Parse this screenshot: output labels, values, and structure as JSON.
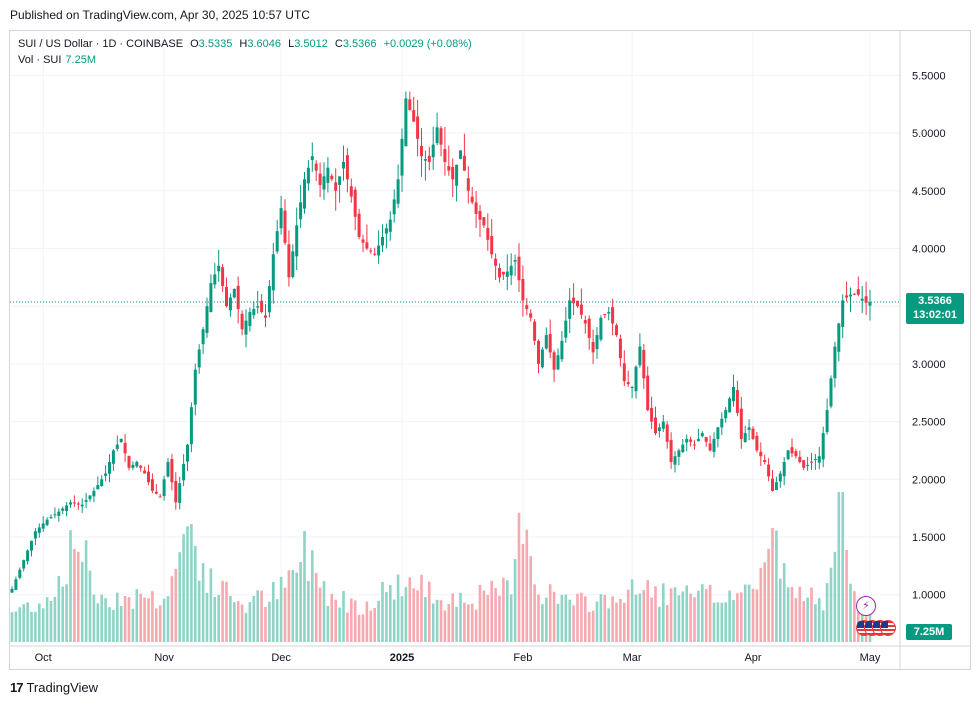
{
  "published": "Published on TradingView.com, Apr 30, 2025 10:57 UTC",
  "legend": {
    "symbol": "SUI / US Dollar · 1D · COINBASE",
    "o_label": "O",
    "o": "3.5335",
    "h_label": "H",
    "h": "3.6046",
    "l_label": "L",
    "l": "3.5012",
    "c_label": "C",
    "c": "3.5366",
    "change": "+0.0029 (+0.08%)",
    "vol_label": "Vol · SUI",
    "vol": "7.25M"
  },
  "price_tag": {
    "price": "3.5366",
    "countdown": "13:02:01"
  },
  "volume_tag": "7.25M",
  "footer": {
    "brand": "TradingView"
  },
  "colors": {
    "up": "#089981",
    "down": "#f23645",
    "up_vol": "#8fd4c6",
    "down_vol": "#f7a9b0",
    "grid": "#f0f3fa",
    "line": "#089981"
  },
  "icons": {
    "event": "lightning-icon",
    "flags": "us-flag-icon"
  },
  "chart_data": {
    "type": "candlestick",
    "title": "SUI / US Dollar · 1D · COINBASE",
    "ylim": [
      0.6,
      5.75
    ],
    "y_ticks": [
      "5.5000",
      "5.0000",
      "4.5000",
      "4.0000",
      "3.5000",
      "3.0000",
      "2.5000",
      "2.0000",
      "1.5000",
      "1.0000"
    ],
    "y_tick_values": [
      5.5,
      5.0,
      4.5,
      4.0,
      3.5,
      3.0,
      2.5,
      2.0,
      1.5,
      1.0
    ],
    "x_ticks": [
      {
        "label": "Oct",
        "day": 8,
        "bold": false
      },
      {
        "label": "Nov",
        "day": 39,
        "bold": false
      },
      {
        "label": "Dec",
        "day": 69,
        "bold": false
      },
      {
        "label": "2025",
        "day": 100,
        "bold": true
      },
      {
        "label": "Feb",
        "day": 131,
        "bold": false
      },
      {
        "label": "Mar",
        "day": 159,
        "bold": false
      },
      {
        "label": "Apr",
        "day": 190,
        "bold": false
      },
      {
        "label": "May",
        "day": 220,
        "bold": false
      }
    ],
    "days": 220,
    "close_anchors": [
      [
        0,
        1.05
      ],
      [
        3,
        1.3
      ],
      [
        6,
        1.55
      ],
      [
        9,
        1.65
      ],
      [
        12,
        1.72
      ],
      [
        15,
        1.8
      ],
      [
        18,
        1.78
      ],
      [
        21,
        1.9
      ],
      [
        24,
        2.05
      ],
      [
        26,
        2.25
      ],
      [
        28,
        2.35
      ],
      [
        30,
        2.1
      ],
      [
        32,
        2.15
      ],
      [
        34,
        2.05
      ],
      [
        36,
        1.9
      ],
      [
        38,
        1.85
      ],
      [
        40,
        2.15
      ],
      [
        42,
        1.8
      ],
      [
        45,
        2.3
      ],
      [
        47,
        2.95
      ],
      [
        49,
        3.3
      ],
      [
        51,
        3.7
      ],
      [
        53,
        3.85
      ],
      [
        55,
        3.5
      ],
      [
        57,
        3.65
      ],
      [
        59,
        3.3
      ],
      [
        61,
        3.45
      ],
      [
        63,
        3.5
      ],
      [
        65,
        3.4
      ],
      [
        67,
        3.95
      ],
      [
        69,
        4.35
      ],
      [
        71,
        3.75
      ],
      [
        73,
        4.2
      ],
      [
        75,
        4.6
      ],
      [
        77,
        4.8
      ],
      [
        79,
        4.55
      ],
      [
        81,
        4.7
      ],
      [
        83,
        4.5
      ],
      [
        85,
        4.75
      ],
      [
        87,
        4.45
      ],
      [
        89,
        4.1
      ],
      [
        91,
        4.0
      ],
      [
        93,
        3.95
      ],
      [
        95,
        4.1
      ],
      [
        97,
        4.25
      ],
      [
        99,
        4.6
      ],
      [
        101,
        5.3
      ],
      [
        103,
        5.1
      ],
      [
        105,
        4.8
      ],
      [
        107,
        4.75
      ],
      [
        109,
        5.05
      ],
      [
        111,
        4.75
      ],
      [
        113,
        4.6
      ],
      [
        115,
        4.85
      ],
      [
        117,
        4.5
      ],
      [
        119,
        4.3
      ],
      [
        121,
        4.2
      ],
      [
        123,
        3.95
      ],
      [
        125,
        3.75
      ],
      [
        127,
        3.8
      ],
      [
        129,
        3.9
      ],
      [
        131,
        3.55
      ],
      [
        133,
        3.4
      ],
      [
        135,
        3.0
      ],
      [
        137,
        3.25
      ],
      [
        139,
        2.95
      ],
      [
        141,
        3.2
      ],
      [
        143,
        3.55
      ],
      [
        145,
        3.5
      ],
      [
        147,
        3.35
      ],
      [
        149,
        3.1
      ],
      [
        151,
        3.4
      ],
      [
        153,
        3.45
      ],
      [
        155,
        3.25
      ],
      [
        157,
        2.85
      ],
      [
        159,
        2.8
      ],
      [
        161,
        3.15
      ],
      [
        163,
        2.6
      ],
      [
        165,
        2.4
      ],
      [
        167,
        2.5
      ],
      [
        169,
        2.15
      ],
      [
        171,
        2.25
      ],
      [
        173,
        2.35
      ],
      [
        175,
        2.3
      ],
      [
        177,
        2.4
      ],
      [
        179,
        2.25
      ],
      [
        181,
        2.45
      ],
      [
        183,
        2.6
      ],
      [
        185,
        2.8
      ],
      [
        187,
        2.35
      ],
      [
        189,
        2.45
      ],
      [
        191,
        2.25
      ],
      [
        193,
        2.15
      ],
      [
        195,
        1.9
      ],
      [
        197,
        2.05
      ],
      [
        199,
        2.25
      ],
      [
        201,
        2.2
      ],
      [
        203,
        2.1
      ],
      [
        205,
        2.15
      ],
      [
        207,
        2.2
      ],
      [
        209,
        2.6
      ],
      [
        211,
        3.15
      ],
      [
        213,
        3.55
      ],
      [
        215,
        3.6
      ],
      [
        217,
        3.6
      ],
      [
        219,
        3.53
      ],
      [
        220,
        3.5366
      ]
    ],
    "volume_anchors": [
      [
        0,
        0.2
      ],
      [
        10,
        0.3
      ],
      [
        17,
        0.7
      ],
      [
        22,
        0.3
      ],
      [
        30,
        0.3
      ],
      [
        40,
        0.3
      ],
      [
        45,
        0.8
      ],
      [
        50,
        0.4
      ],
      [
        60,
        0.25
      ],
      [
        70,
        0.35
      ],
      [
        75,
        0.6
      ],
      [
        82,
        0.3
      ],
      [
        90,
        0.25
      ],
      [
        100,
        0.4
      ],
      [
        110,
        0.3
      ],
      [
        120,
        0.3
      ],
      [
        128,
        0.35
      ],
      [
        131,
        0.9
      ],
      [
        135,
        0.35
      ],
      [
        145,
        0.25
      ],
      [
        155,
        0.3
      ],
      [
        163,
        0.35
      ],
      [
        170,
        0.3
      ],
      [
        180,
        0.3
      ],
      [
        190,
        0.35
      ],
      [
        195,
        0.7
      ],
      [
        200,
        0.3
      ],
      [
        208,
        0.3
      ],
      [
        211,
        0.85
      ],
      [
        213,
        0.9
      ],
      [
        215,
        0.3
      ],
      [
        220,
        0.2
      ]
    ],
    "current_price": 3.5366,
    "current_volume": "7.25M"
  }
}
